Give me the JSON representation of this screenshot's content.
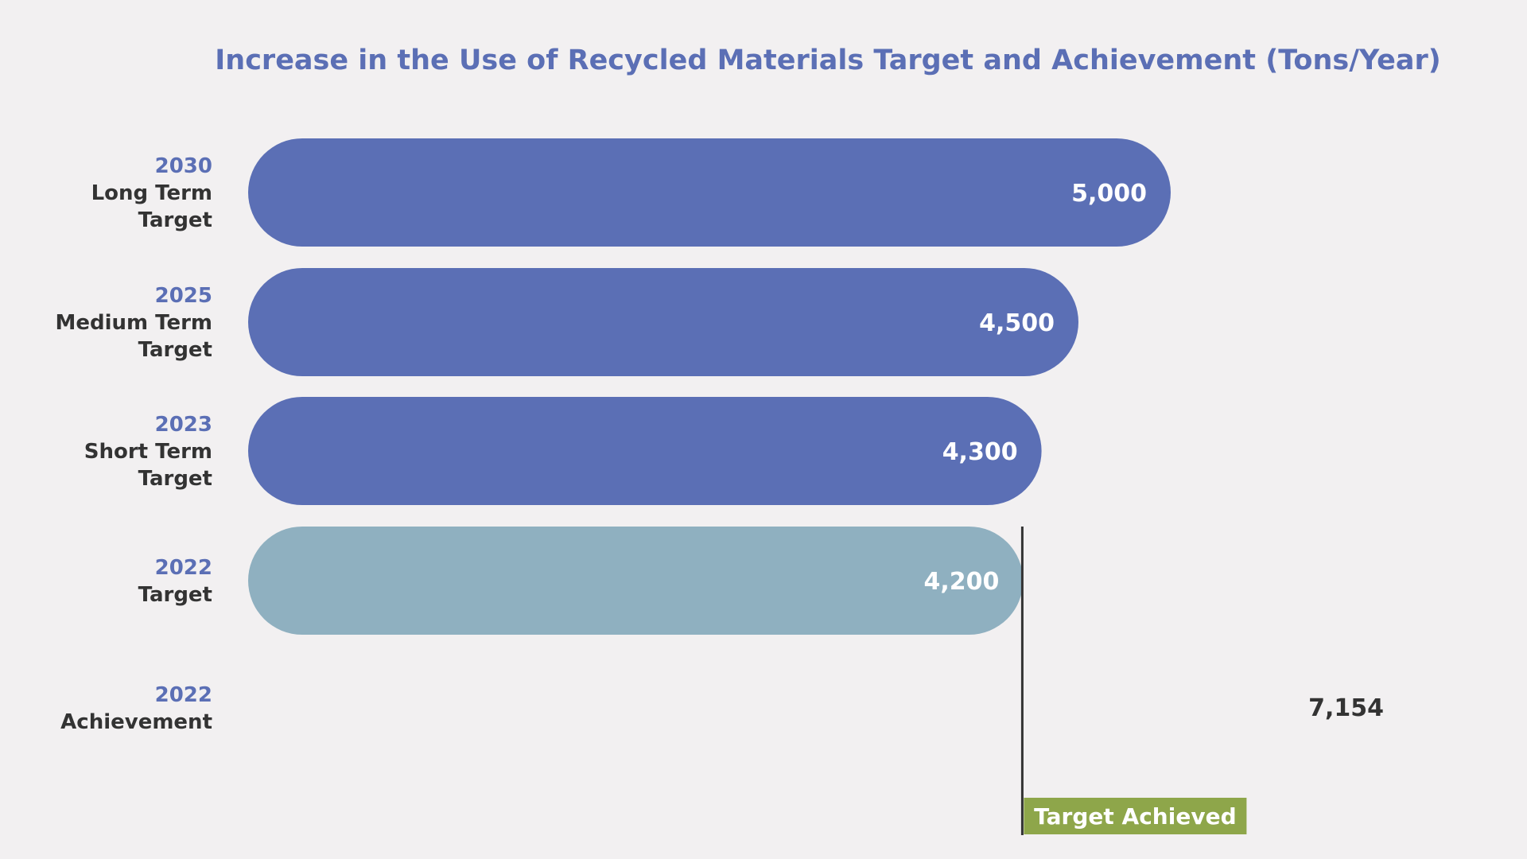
{
  "chart_data": {
    "type": "bar",
    "orientation": "horizontal",
    "title": "Increase in the Use of Recycled Materials Target and Achievement (Tons/Year)",
    "rows": [
      {
        "year": "2030",
        "label_lines": [
          "Long Term",
          "Target"
        ],
        "value": 5000,
        "value_label": "5,000",
        "color": "#5b6fb5",
        "bar": true
      },
      {
        "year": "2025",
        "label_lines": [
          "Medium Term",
          "Target"
        ],
        "value": 4500,
        "value_label": "4,500",
        "color": "#5b6fb5",
        "bar": true
      },
      {
        "year": "2023",
        "label_lines": [
          "Short Term",
          "Target"
        ],
        "value": 4300,
        "value_label": "4,300",
        "color": "#5b6fb5",
        "bar": true
      },
      {
        "year": "2022",
        "label_lines": [
          "Target"
        ],
        "value": 4200,
        "value_label": "4,200",
        "color": "#8fb0c0",
        "bar": true
      },
      {
        "year": "2022",
        "label_lines": [
          "Achievement"
        ],
        "value": 7154,
        "value_label": "7,154",
        "color": "#333333",
        "bar": false
      }
    ],
    "annotation": {
      "text": "Target Achieved",
      "at_value": 4200,
      "badge_color": "#8ea64a",
      "line_color": "#333333"
    },
    "colors": {
      "title": "#5b6fb5",
      "year": "#5b6fb5",
      "label": "#333333",
      "background": "#f2f0f1"
    }
  }
}
